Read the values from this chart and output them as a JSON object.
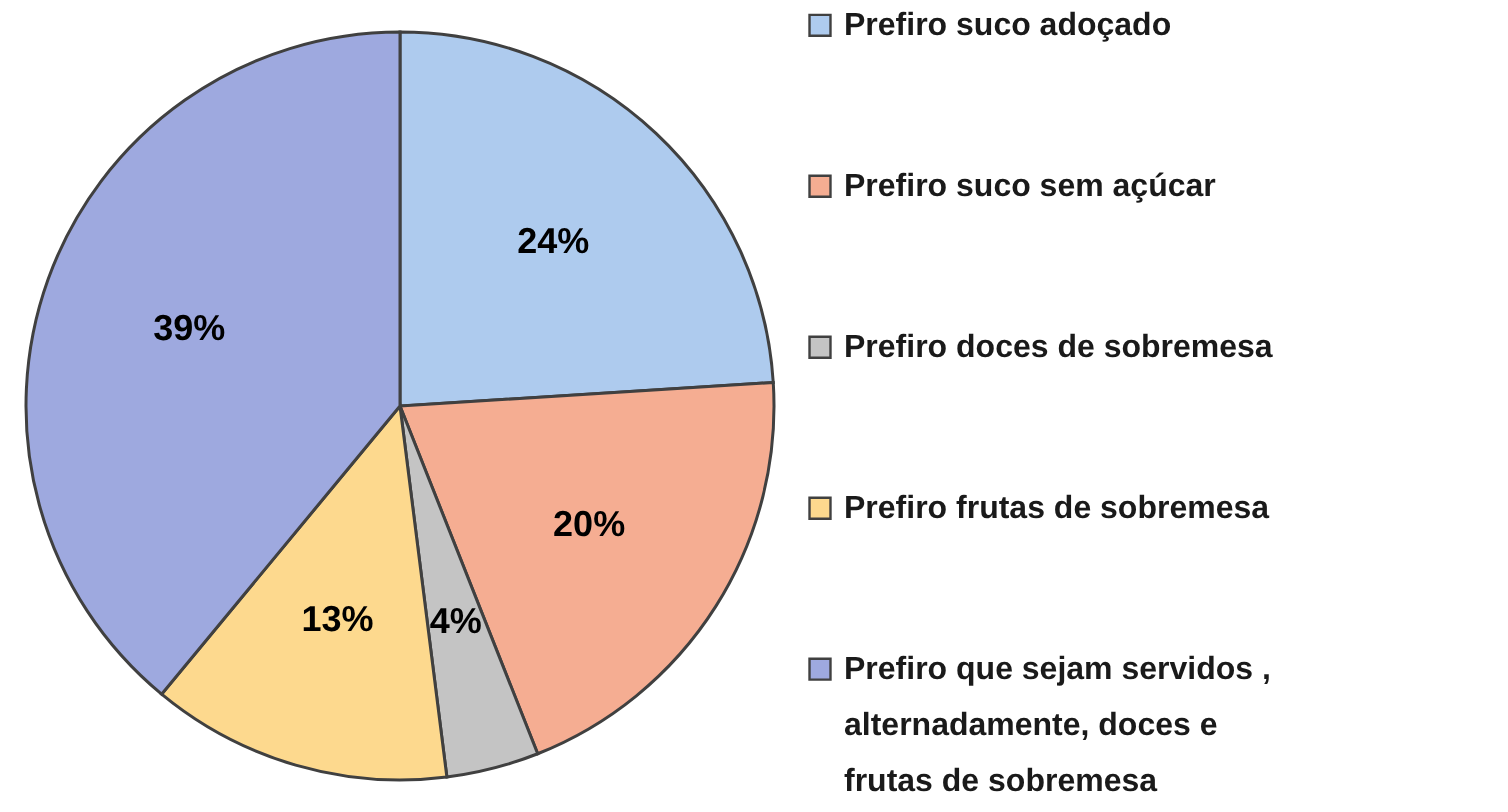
{
  "chart_data": {
    "type": "pie",
    "categories": [
      "Prefiro suco adoçado",
      "Prefiro suco sem açúcar",
      "Prefiro doces de sobremesa",
      "Prefiro frutas de sobremesa",
      "Prefiro que sejam servidos ,\nalternadamente, doces e\nfrutas de sobremesa"
    ],
    "values": [
      24,
      20,
      4,
      13,
      39
    ],
    "colors": [
      "#aecbee",
      "#f5ad92",
      "#c4c4c4",
      "#fdd98e",
      "#9ea9df"
    ],
    "value_labels": [
      "24%",
      "20%",
      "4%",
      "13%",
      "39%"
    ],
    "legend": "right"
  }
}
